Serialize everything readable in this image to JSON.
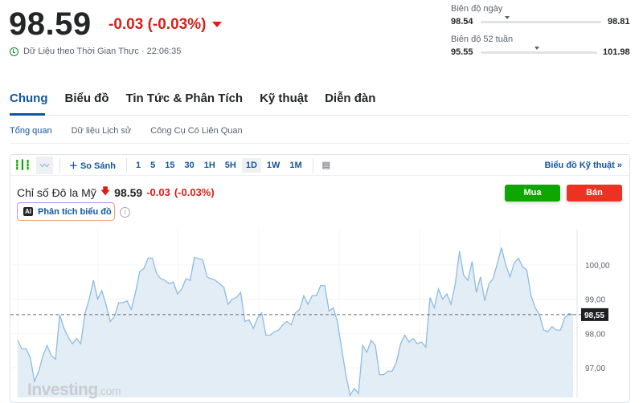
{
  "quote": {
    "price": "98.59",
    "change": "-0.03 (-0.03%)",
    "realtime_label": "Dữ Liệu theo Thời Gian Thực · 22:06:35",
    "direction": "down",
    "change_color": "#d91e18"
  },
  "day_range": {
    "label": "Biên độ ngày",
    "low": "98.54",
    "high": "98.81",
    "marker_fraction": 0.22
  },
  "week52_range": {
    "label": "Biên độ 52 tuần",
    "low": "95.55",
    "high": "101.98",
    "marker_fraction": 0.48
  },
  "tabs": [
    {
      "label": "Chung",
      "active": true
    },
    {
      "label": "Biểu đồ"
    },
    {
      "label": "Tin Tức & Phân Tích"
    },
    {
      "label": "Kỹ thuật"
    },
    {
      "label": "Diễn đàn"
    }
  ],
  "subtabs": [
    {
      "label": "Tổng quan",
      "active": true
    },
    {
      "label": "Dữ liệu Lịch sử"
    },
    {
      "label": "Công Cụ Có Liên Quan"
    }
  ],
  "toolbar": {
    "compare": "So Sánh",
    "intervals": [
      "1",
      "5",
      "15",
      "30",
      "1H",
      "5H",
      "1D",
      "1W",
      "1M"
    ],
    "active_interval": "1D",
    "tech_chart": "Biểu đồ Kỹ thuật »"
  },
  "chart_title": {
    "name": "Chỉ số Đô la Mỹ",
    "price": "98.59",
    "change": "-0.03",
    "percent": "(-0.03%)"
  },
  "ai_button": {
    "badge": "AI",
    "label": "Phân tích biểu đồ"
  },
  "buy": "Mua",
  "sell": "Bán",
  "accent": "#1256a0",
  "buy_color": "#0ea600",
  "sell_color": "#ec3323",
  "logo": "Investing.com",
  "chart_data": {
    "type": "area",
    "ylim": [
      96.2,
      101.0
    ],
    "y_ticks": [
      "100,00",
      "99,00",
      "98,00",
      "97,00"
    ],
    "y_tick_values": [
      100,
      99,
      98,
      97
    ],
    "last_value_label": "98,55",
    "last_value": 98.55,
    "grid": true,
    "values": [
      97.8,
      97.55,
      97.55,
      97.3,
      96.6,
      96.9,
      97.35,
      97.65,
      97.35,
      97.25,
      98.55,
      98.15,
      97.9,
      97.7,
      97.85,
      97.7,
      98.6,
      99.0,
      99.55,
      99.0,
      99.25,
      98.85,
      98.35,
      98.5,
      98.9,
      98.9,
      98.95,
      98.7,
      99.2,
      99.8,
      99.9,
      100.2,
      100.2,
      99.75,
      99.6,
      99.55,
      99.45,
      99.5,
      99.15,
      99.3,
      99.6,
      99.55,
      100.22,
      100.18,
      100.15,
      99.65,
      99.6,
      99.55,
      99.45,
      99.35,
      98.85,
      99.0,
      99.05,
      99.2,
      98.35,
      98.4,
      98.15,
      98.45,
      98.6,
      97.95,
      97.95,
      98.05,
      98.1,
      98.25,
      98.35,
      98.25,
      98.6,
      98.7,
      99.1,
      98.85,
      99.1,
      99.1,
      99.4,
      99.4,
      98.65,
      98.75,
      98.35,
      97.55,
      96.8,
      96.2,
      96.4,
      96.25,
      97.65,
      97.45,
      97.8,
      97.65,
      96.8,
      96.8,
      96.9,
      96.9,
      97.15,
      97.7,
      97.95,
      97.75,
      97.85,
      97.7,
      97.75,
      97.6,
      99.05,
      98.75,
      99.3,
      99.0,
      99.15,
      98.85,
      99.45,
      100.4,
      99.7,
      99.55,
      100.1,
      99.2,
      99.65,
      98.95,
      99.45,
      99.6,
      100.05,
      100.5,
      100.0,
      99.65,
      100.05,
      100.2,
      99.95,
      99.85,
      99.1,
      98.75,
      98.55,
      98.1,
      98.05,
      98.2,
      98.1,
      98.1,
      98.45,
      98.58,
      98.55
    ]
  }
}
